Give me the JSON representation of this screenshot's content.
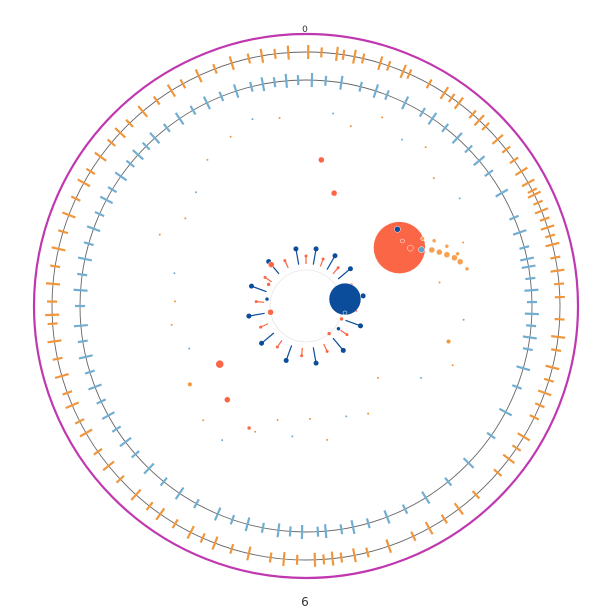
{
  "chart_data": {
    "type": "circular-genome-plot",
    "labels": {
      "top": "0",
      "bottom": "6"
    },
    "colors": {
      "outer_ring": "#c038b0",
      "axis_lines": "#666666",
      "forward_features": "#f0963c",
      "reverse_features": "#72aed2",
      "bubble_orange": "#fb6647",
      "bubble_blue": "#0b4c9b",
      "bubble_light_blue": "#5aa3cf",
      "bubble_amber": "#f6a050"
    },
    "forward_track": [
      {
        "a": 0.5,
        "h": 2
      },
      {
        "a": 3.5,
        "h": 1
      },
      {
        "a": 7,
        "h": 2
      },
      {
        "a": 8.5,
        "h": 1
      },
      {
        "a": 11,
        "h": 2
      },
      {
        "a": 13,
        "h": 1
      },
      {
        "a": 17,
        "h": 2
      },
      {
        "a": 19,
        "h": 1
      },
      {
        "a": 22.5,
        "h": 2
      },
      {
        "a": 24,
        "h": 1
      },
      {
        "a": 29,
        "h": 1
      },
      {
        "a": 33,
        "h": 2
      },
      {
        "a": 35,
        "h": 1
      },
      {
        "a": 37,
        "h": 2
      },
      {
        "a": 41,
        "h": 1
      },
      {
        "a": 43,
        "h": 2
      },
      {
        "a": 45,
        "h": 1
      },
      {
        "a": 49,
        "h": 2
      },
      {
        "a": 52,
        "h": 1
      },
      {
        "a": 55,
        "h": 1
      },
      {
        "a": 58,
        "h": 2
      },
      {
        "a": 61,
        "h": 2
      },
      {
        "a": 63,
        "h": 1
      },
      {
        "a": 64,
        "h": 2
      },
      {
        "a": 66,
        "h": 1
      },
      {
        "a": 68,
        "h": 2
      },
      {
        "a": 70,
        "h": 1
      },
      {
        "a": 72,
        "h": 2
      },
      {
        "a": 74,
        "h": 1
      },
      {
        "a": 76,
        "h": 2
      },
      {
        "a": 79,
        "h": 1
      },
      {
        "a": 82,
        "h": 2
      },
      {
        "a": 85,
        "h": 1
      },
      {
        "a": 88,
        "h": 1
      },
      {
        "a": 93,
        "h": 1
      },
      {
        "a": 97,
        "h": 2
      },
      {
        "a": 100,
        "h": 1
      },
      {
        "a": 104,
        "h": 2
      },
      {
        "a": 107,
        "h": 1
      },
      {
        "a": 110,
        "h": 2
      },
      {
        "a": 113,
        "h": 1
      },
      {
        "a": 116,
        "h": 1
      },
      {
        "a": 121,
        "h": 2
      },
      {
        "a": 124,
        "h": 1
      },
      {
        "a": 127,
        "h": 2
      },
      {
        "a": 131,
        "h": 1
      },
      {
        "a": 138,
        "h": 1
      },
      {
        "a": 143,
        "h": 2
      },
      {
        "a": 147,
        "h": 1
      },
      {
        "a": 151,
        "h": 2
      },
      {
        "a": 155,
        "h": 1
      },
      {
        "a": 161,
        "h": 2
      },
      {
        "a": 166,
        "h": 1
      },
      {
        "a": 169,
        "h": 2
      },
      {
        "a": 172,
        "h": 1
      },
      {
        "a": 174,
        "h": 2
      },
      {
        "a": 176,
        "h": 1
      },
      {
        "a": 178,
        "h": 2
      },
      {
        "a": 182,
        "h": 1
      },
      {
        "a": 185,
        "h": 2
      },
      {
        "a": 188,
        "h": 1
      },
      {
        "a": 193,
        "h": 2
      },
      {
        "a": 197,
        "h": 1
      },
      {
        "a": 201,
        "h": 2
      },
      {
        "a": 204,
        "h": 1
      },
      {
        "a": 207,
        "h": 2
      },
      {
        "a": 211,
        "h": 1
      },
      {
        "a": 215,
        "h": 2
      },
      {
        "a": 218,
        "h": 1
      },
      {
        "a": 222,
        "h": 2
      },
      {
        "a": 227,
        "h": 1
      },
      {
        "a": 231,
        "h": 2
      },
      {
        "a": 235,
        "h": 1
      },
      {
        "a": 240,
        "h": 2
      },
      {
        "a": 243,
        "h": 1
      },
      {
        "a": 247,
        "h": 2
      },
      {
        "a": 250,
        "h": 1
      },
      {
        "a": 254,
        "h": 2
      },
      {
        "a": 258,
        "h": 1
      },
      {
        "a": 262,
        "h": 2
      },
      {
        "a": 266,
        "h": 1
      },
      {
        "a": 268,
        "h": 2
      },
      {
        "a": 271,
        "h": 1
      },
      {
        "a": 275,
        "h": 2
      },
      {
        "a": 279,
        "h": 1
      },
      {
        "a": 283,
        "h": 2
      },
      {
        "a": 287,
        "h": 1
      },
      {
        "a": 291,
        "h": 2
      },
      {
        "a": 295,
        "h": 1
      },
      {
        "a": 299,
        "h": 2
      },
      {
        "a": 302,
        "h": 1
      },
      {
        "a": 306,
        "h": 2
      },
      {
        "a": 310,
        "h": 1
      },
      {
        "a": 313,
        "h": 2
      },
      {
        "a": 316,
        "h": 1
      },
      {
        "a": 320,
        "h": 2
      },
      {
        "a": 324,
        "h": 1
      },
      {
        "a": 328,
        "h": 2
      },
      {
        "a": 331,
        "h": 1
      },
      {
        "a": 335,
        "h": 2
      },
      {
        "a": 339,
        "h": 1
      },
      {
        "a": 343,
        "h": 2
      },
      {
        "a": 347,
        "h": 1
      },
      {
        "a": 350,
        "h": 2
      },
      {
        "a": 353,
        "h": 1
      },
      {
        "a": 356,
        "h": 2
      }
    ],
    "reverse_track": [
      {
        "a": 1.5,
        "h": 2
      },
      {
        "a": 5,
        "h": 1
      },
      {
        "a": 9,
        "h": 2
      },
      {
        "a": 14,
        "h": 1
      },
      {
        "a": 18,
        "h": 2
      },
      {
        "a": 21,
        "h": 1
      },
      {
        "a": 26,
        "h": 2
      },
      {
        "a": 31,
        "h": 1
      },
      {
        "a": 34,
        "h": 2
      },
      {
        "a": 38,
        "h": 1
      },
      {
        "a": 42,
        "h": 2
      },
      {
        "a": 46,
        "h": 1
      },
      {
        "a": 50,
        "h": 2
      },
      {
        "a": 54,
        "h": 1
      },
      {
        "a": 60,
        "h": 2
      },
      {
        "a": 67,
        "h": 1
      },
      {
        "a": 71,
        "h": 2
      },
      {
        "a": 75,
        "h": 1
      },
      {
        "a": 78,
        "h": 2
      },
      {
        "a": 80,
        "h": 2
      },
      {
        "a": 83,
        "h": 1
      },
      {
        "a": 86,
        "h": 2
      },
      {
        "a": 89,
        "h": 1
      },
      {
        "a": 92,
        "h": 2
      },
      {
        "a": 95,
        "h": 1
      },
      {
        "a": 98,
        "h": 2
      },
      {
        "a": 101,
        "h": 1
      },
      {
        "a": 106,
        "h": 2
      },
      {
        "a": 111,
        "h": 1
      },
      {
        "a": 118,
        "h": 2
      },
      {
        "a": 125,
        "h": 1
      },
      {
        "a": 134,
        "h": 2
      },
      {
        "a": 141,
        "h": 1
      },
      {
        "a": 148,
        "h": 2
      },
      {
        "a": 154,
        "h": 1
      },
      {
        "a": 159,
        "h": 2
      },
      {
        "a": 164,
        "h": 1
      },
      {
        "a": 168,
        "h": 2
      },
      {
        "a": 171,
        "h": 1
      },
      {
        "a": 175,
        "h": 2
      },
      {
        "a": 177,
        "h": 1
      },
      {
        "a": 181,
        "h": 2
      },
      {
        "a": 184,
        "h": 1
      },
      {
        "a": 187,
        "h": 2
      },
      {
        "a": 191,
        "h": 1
      },
      {
        "a": 195,
        "h": 2
      },
      {
        "a": 199,
        "h": 1
      },
      {
        "a": 203,
        "h": 2
      },
      {
        "a": 209,
        "h": 1
      },
      {
        "a": 214,
        "h": 2
      },
      {
        "a": 219,
        "h": 1
      },
      {
        "a": 224,
        "h": 2
      },
      {
        "a": 229,
        "h": 1
      },
      {
        "a": 233,
        "h": 2
      },
      {
        "a": 237,
        "h": 1
      },
      {
        "a": 241,
        "h": 2
      },
      {
        "a": 245,
        "h": 1
      },
      {
        "a": 249,
        "h": 2
      },
      {
        "a": 253,
        "h": 1
      },
      {
        "a": 257,
        "h": 2
      },
      {
        "a": 261,
        "h": 1
      },
      {
        "a": 265,
        "h": 2
      },
      {
        "a": 270,
        "h": 1
      },
      {
        "a": 274,
        "h": 2
      },
      {
        "a": 278,
        "h": 1
      },
      {
        "a": 282,
        "h": 2
      },
      {
        "a": 286,
        "h": 1
      },
      {
        "a": 290,
        "h": 2
      },
      {
        "a": 294,
        "h": 1
      },
      {
        "a": 298,
        "h": 2
      },
      {
        "a": 301,
        "h": 1
      },
      {
        "a": 305,
        "h": 2
      },
      {
        "a": 309,
        "h": 1
      },
      {
        "a": 312,
        "h": 2
      },
      {
        "a": 315,
        "h": 1
      },
      {
        "a": 318,
        "h": 2
      },
      {
        "a": 322,
        "h": 1
      },
      {
        "a": 326,
        "h": 2
      },
      {
        "a": 330,
        "h": 1
      },
      {
        "a": 334,
        "h": 2
      },
      {
        "a": 338,
        "h": 1
      },
      {
        "a": 342,
        "h": 2
      },
      {
        "a": 346,
        "h": 1
      },
      {
        "a": 349,
        "h": 2
      },
      {
        "a": 352,
        "h": 1
      },
      {
        "a": 355,
        "h": 2
      },
      {
        "a": 358,
        "h": 1
      }
    ],
    "scatter_points": [
      {
        "a": 8,
        "d": 0.86,
        "r": 1
      },
      {
        "a": 14,
        "d": 0.82,
        "r": 1
      },
      {
        "a": 22,
        "d": 0.9,
        "r": 1
      },
      {
        "a": 30,
        "d": 0.85,
        "r": 1
      },
      {
        "a": 37,
        "d": 0.88,
        "r": 1
      },
      {
        "a": 45,
        "d": 0.8,
        "r": 1
      },
      {
        "a": 55,
        "d": 0.83,
        "r": 1
      },
      {
        "a": 68,
        "d": 0.75,
        "r": 1
      },
      {
        "a": 80,
        "d": 0.6,
        "r": 1
      },
      {
        "a": 95,
        "d": 0.7,
        "r": 1
      },
      {
        "a": 104,
        "d": 0.65,
        "r": 2
      },
      {
        "a": 112,
        "d": 0.7,
        "r": 1
      },
      {
        "a": 122,
        "d": 0.6,
        "r": 1
      },
      {
        "a": 135,
        "d": 0.45,
        "r": 1
      },
      {
        "a": 150,
        "d": 0.55,
        "r": 1
      },
      {
        "a": 160,
        "d": 0.52,
        "r": 1
      },
      {
        "a": 171,
        "d": 0.6,
        "r": 1
      },
      {
        "a": 178,
        "d": 0.5,
        "r": 1
      },
      {
        "a": 186,
        "d": 0.58,
        "r": 1
      },
      {
        "a": 194,
        "d": 0.52,
        "r": 1
      },
      {
        "a": 202,
        "d": 0.6,
        "r": 1
      },
      {
        "a": 212,
        "d": 0.7,
        "r": 1
      },
      {
        "a": 222,
        "d": 0.68,
        "r": 1
      },
      {
        "a": 236,
        "d": 0.62,
        "r": 2
      },
      {
        "a": 250,
        "d": 0.55,
        "r": 1
      },
      {
        "a": 262,
        "d": 0.6,
        "r": 1
      },
      {
        "a": 272,
        "d": 0.58,
        "r": 1
      },
      {
        "a": 284,
        "d": 0.6,
        "r": 1
      },
      {
        "a": 296,
        "d": 0.72,
        "r": 1
      },
      {
        "a": 306,
        "d": 0.66,
        "r": 1
      },
      {
        "a": 316,
        "d": 0.7,
        "r": 1
      },
      {
        "a": 326,
        "d": 0.78,
        "r": 1
      },
      {
        "a": 336,
        "d": 0.82,
        "r": 1
      },
      {
        "a": 344,
        "d": 0.86,
        "r": 1
      },
      {
        "a": 352,
        "d": 0.84,
        "r": 1
      }
    ],
    "inner_bursts": [
      {
        "a": 0,
        "d": 0.3,
        "r": 1
      },
      {
        "a": 10,
        "d": 0.35,
        "r": 2
      },
      {
        "a": 20,
        "d": 0.32,
        "r": 1
      },
      {
        "a": 30,
        "d": 0.36,
        "r": 2
      },
      {
        "a": 40,
        "d": 0.3,
        "r": 1
      },
      {
        "a": 50,
        "d": 0.38,
        "r": 2
      },
      {
        "a": 65,
        "d": 0.32,
        "r": 1
      },
      {
        "a": 80,
        "d": 0.37,
        "r": 2
      },
      {
        "a": 95,
        "d": 0.3,
        "r": 1
      },
      {
        "a": 110,
        "d": 0.34,
        "r": 2
      },
      {
        "a": 125,
        "d": 0.32,
        "r": 1
      },
      {
        "a": 140,
        "d": 0.36,
        "r": 2
      },
      {
        "a": 155,
        "d": 0.3,
        "r": 1
      },
      {
        "a": 170,
        "d": 0.35,
        "r": 2
      },
      {
        "a": 185,
        "d": 0.32,
        "r": 1
      },
      {
        "a": 200,
        "d": 0.36,
        "r": 2
      },
      {
        "a": 215,
        "d": 0.3,
        "r": 1
      },
      {
        "a": 230,
        "d": 0.35,
        "r": 2
      },
      {
        "a": 245,
        "d": 0.32,
        "r": 1
      },
      {
        "a": 260,
        "d": 0.36,
        "r": 2
      },
      {
        "a": 275,
        "d": 0.3,
        "r": 1
      },
      {
        "a": 290,
        "d": 0.34,
        "r": 2
      },
      {
        "a": 305,
        "d": 0.32,
        "r": 1
      },
      {
        "a": 320,
        "d": 0.36,
        "r": 2
      },
      {
        "a": 335,
        "d": 0.3,
        "r": 1
      },
      {
        "a": 350,
        "d": 0.34,
        "r": 2
      }
    ],
    "bubbles": [
      {
        "a": 58,
        "d": 1.8,
        "r": 26,
        "color": "orange"
      },
      {
        "a": 80,
        "d": 1.1,
        "r": 16,
        "color": "blue"
      },
      {
        "a": 50,
        "d": 1.95,
        "r": 3,
        "color": "blue"
      },
      {
        "a": 56,
        "d": 1.9,
        "r": 2,
        "color": "orange"
      },
      {
        "a": 61,
        "d": 1.95,
        "r": 3,
        "color": "orange"
      },
      {
        "a": 64,
        "d": 2.1,
        "r": 3,
        "color": "light_blue"
      },
      {
        "a": 66,
        "d": 2.25,
        "r": 3,
        "color": "amber"
      },
      {
        "a": 68,
        "d": 2.35,
        "r": 3,
        "color": "amber"
      },
      {
        "a": 70,
        "d": 2.45,
        "r": 3,
        "color": "amber"
      },
      {
        "a": 72,
        "d": 2.55,
        "r": 3,
        "color": "amber"
      },
      {
        "a": 74,
        "d": 2.62,
        "r": 3,
        "color": "amber"
      },
      {
        "a": 77,
        "d": 2.7,
        "r": 2,
        "color": "amber"
      },
      {
        "a": 60,
        "d": 2.2,
        "r": 2,
        "color": "amber"
      },
      {
        "a": 63,
        "d": 2.35,
        "r": 2,
        "color": "amber"
      },
      {
        "a": 67,
        "d": 2.5,
        "r": 2,
        "color": "amber"
      },
      {
        "a": 71,
        "d": 2.62,
        "r": 2,
        "color": "amber"
      },
      {
        "a": 6,
        "d": 2.4,
        "r": 3,
        "color": "orange"
      },
      {
        "a": 14,
        "d": 1.9,
        "r": 3,
        "color": "orange"
      },
      {
        "a": 320,
        "d": 1.5,
        "r": 3,
        "color": "orange"
      },
      {
        "a": 300,
        "d": 1.2,
        "r": 2,
        "color": "orange"
      },
      {
        "a": 236,
        "d": 1.7,
        "r": 4,
        "color": "orange"
      },
      {
        "a": 220,
        "d": 2.0,
        "r": 3,
        "color": "orange"
      },
      {
        "a": 205,
        "d": 2.2,
        "r": 2,
        "color": "orange"
      },
      {
        "a": 100,
        "d": 1.1,
        "r": 2,
        "color": "blue"
      },
      {
        "a": 110,
        "d": 1.05,
        "r": 2,
        "color": "orange"
      },
      {
        "a": 125,
        "d": 1.1,
        "r": 2,
        "color": "blue"
      },
      {
        "a": 140,
        "d": 1.0,
        "r": 2,
        "color": "orange"
      },
      {
        "a": 260,
        "d": 1.0,
        "r": 3,
        "color": "orange"
      },
      {
        "a": 280,
        "d": 1.1,
        "r": 2,
        "color": "blue"
      }
    ]
  }
}
